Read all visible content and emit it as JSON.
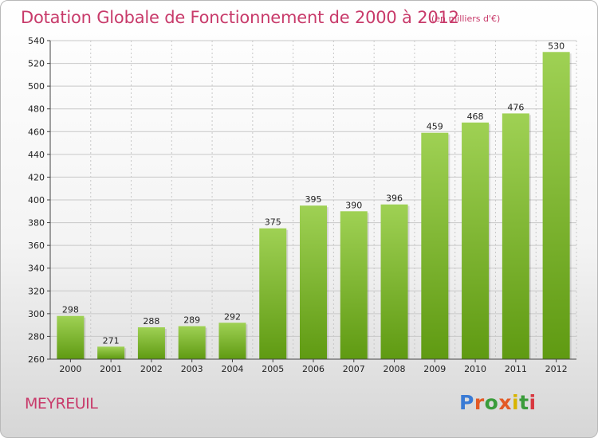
{
  "colors": {
    "title": "#c83a6a",
    "bar_top": "#9fd154",
    "bar_bottom": "#5f9a12",
    "grid": "#c8c8c8",
    "axis_text": "#222222"
  },
  "commune": "MEYREUIL",
  "logo_text": "Proxiti",
  "logo_letter_colors": [
    "#3a7bd5",
    "#e35a25",
    "#3a9c3a",
    "#e35a25",
    "#d8b400",
    "#3a9c3a",
    "#d8373f"
  ],
  "chart_data": {
    "type": "bar",
    "title": "Dotation Globale de Fonctionnement de 2000 à 2012",
    "subtitle": "(en milliers d'€)",
    "categories": [
      "2000",
      "2001",
      "2002",
      "2003",
      "2004",
      "2005",
      "2006",
      "2007",
      "2008",
      "2009",
      "2010",
      "2011",
      "2012"
    ],
    "values": [
      298,
      271,
      288,
      289,
      292,
      375,
      395,
      390,
      396,
      459,
      468,
      476,
      530
    ],
    "ylim": [
      260,
      540
    ],
    "yticks": [
      260,
      280,
      300,
      320,
      340,
      360,
      380,
      400,
      420,
      440,
      460,
      480,
      500,
      520,
      540
    ],
    "grid": true,
    "data_labels": true
  }
}
